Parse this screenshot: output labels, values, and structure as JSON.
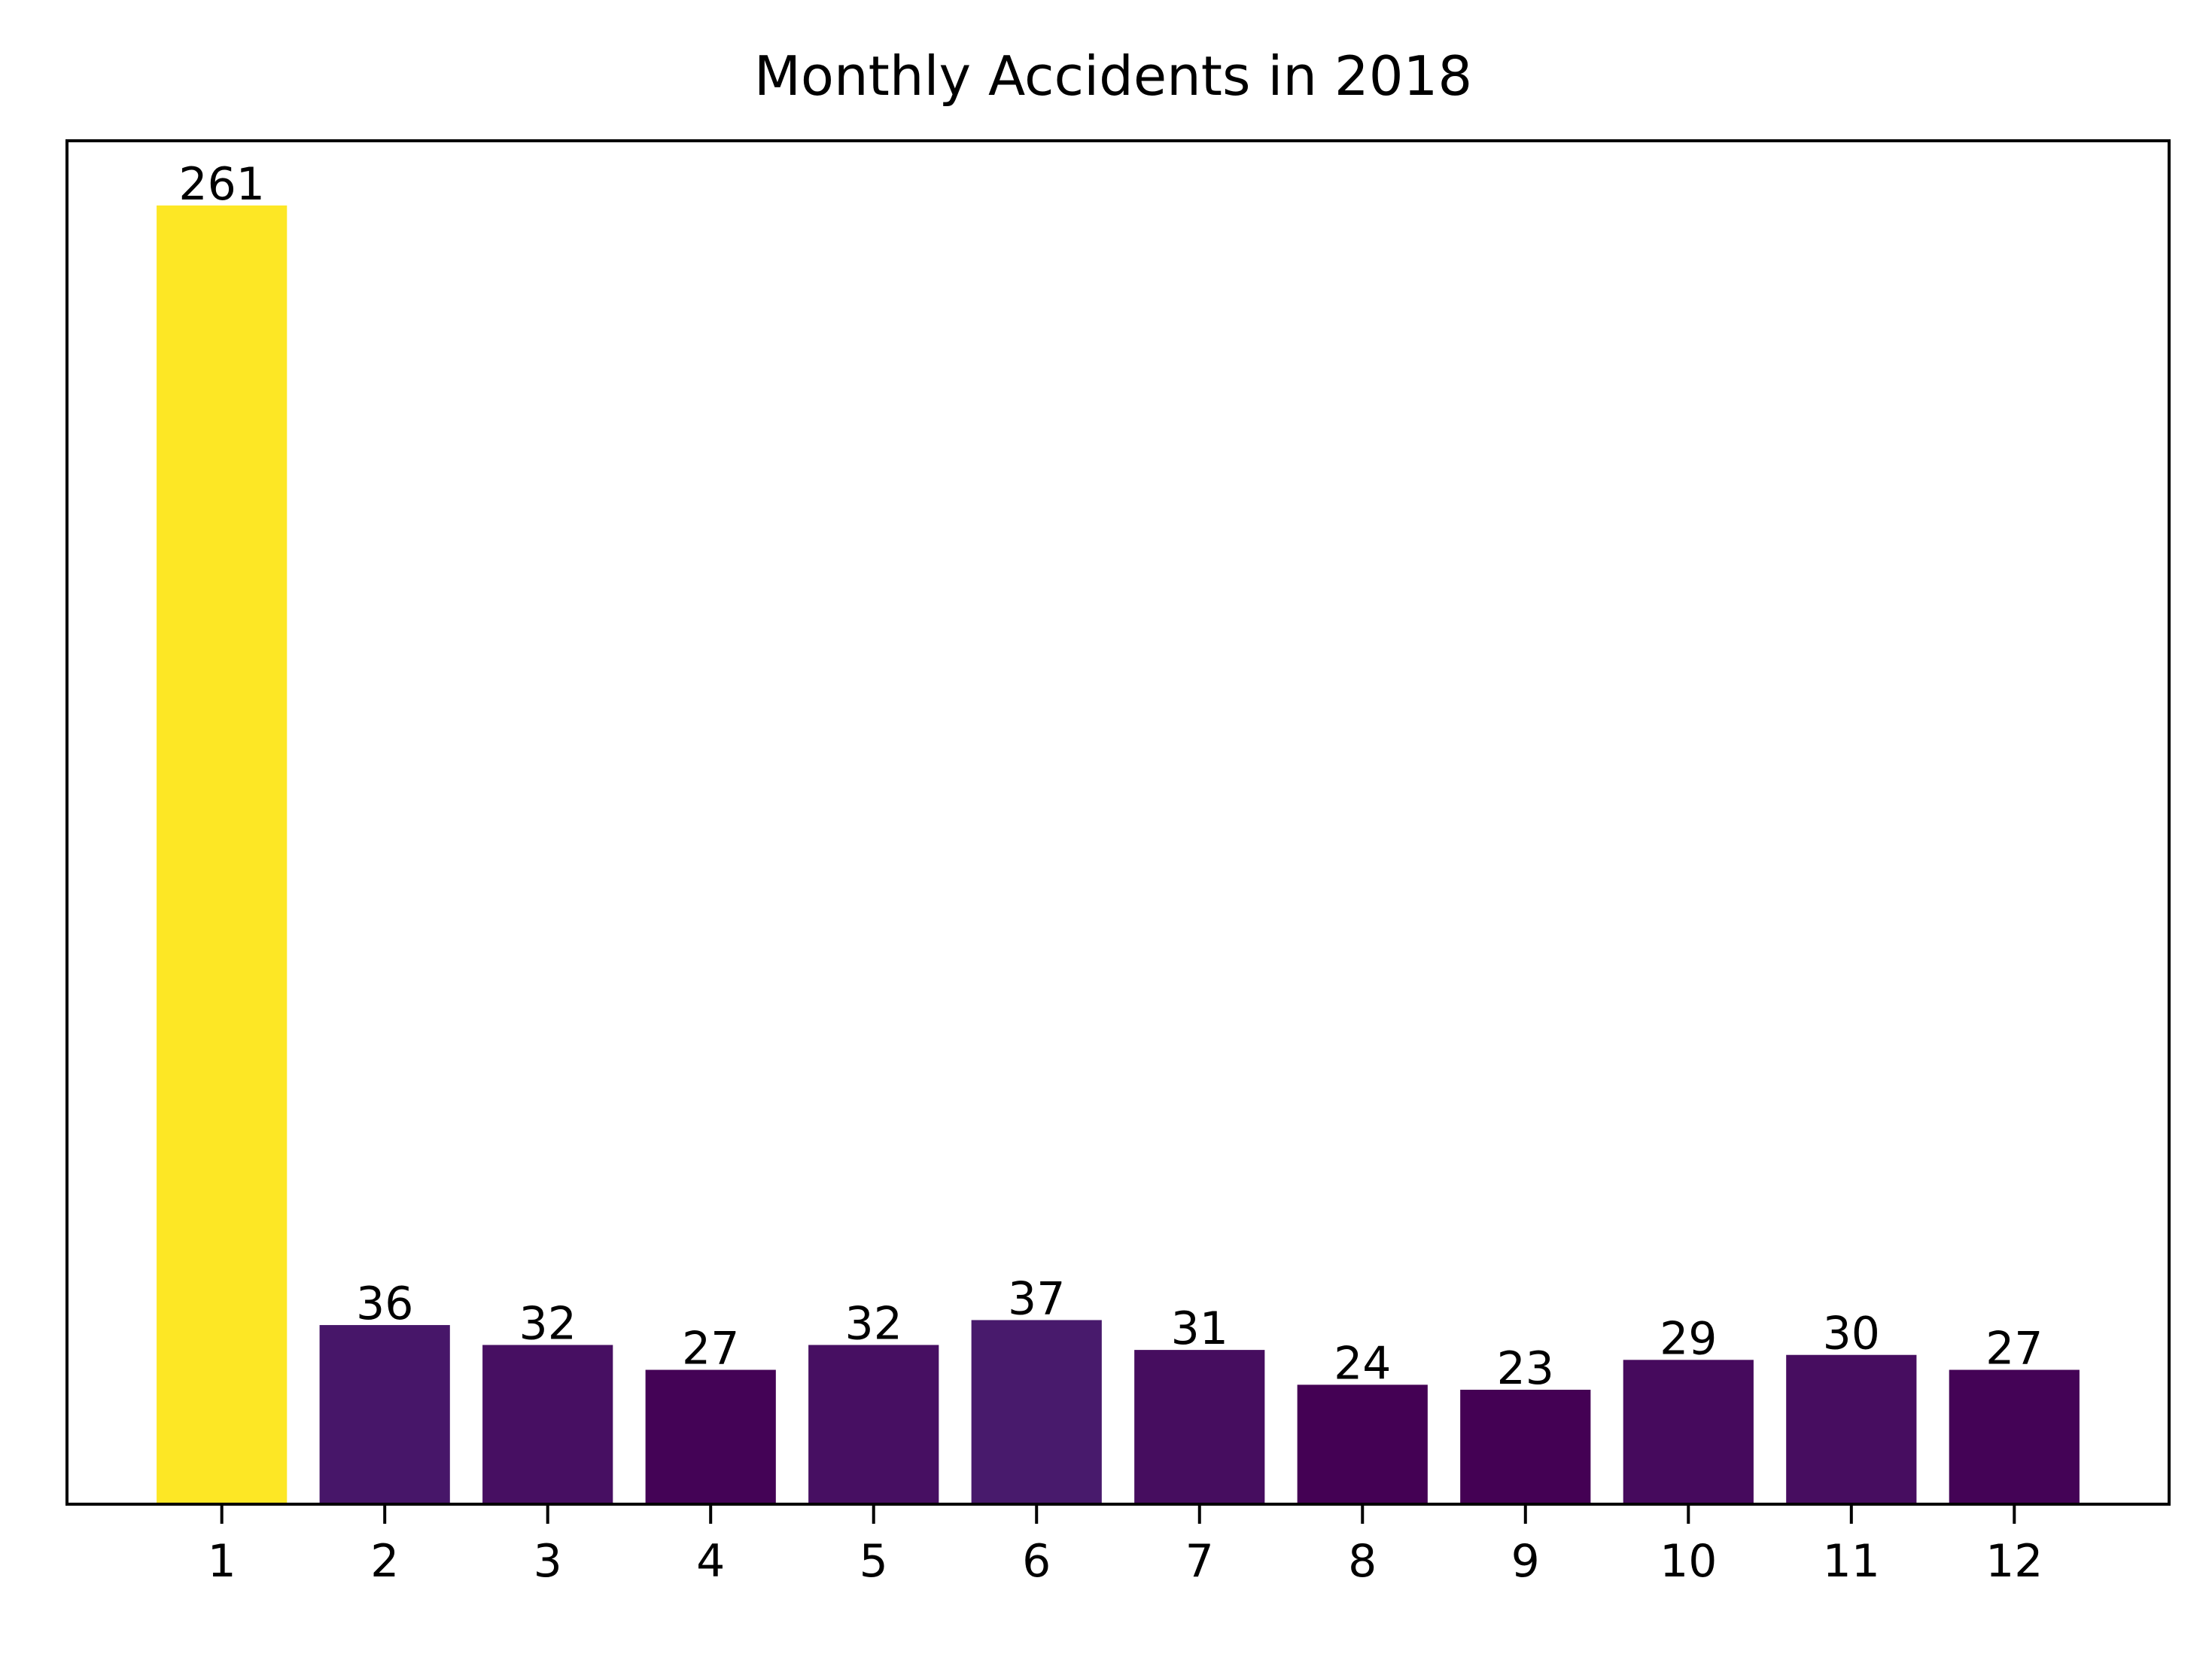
{
  "chart_data": {
    "type": "bar",
    "title": "Monthly Accidents in 2018",
    "xlabel": "",
    "ylabel": "",
    "categories": [
      "1",
      "2",
      "3",
      "4",
      "5",
      "6",
      "7",
      "8",
      "9",
      "10",
      "11",
      "12"
    ],
    "values": [
      261,
      36,
      32,
      27,
      32,
      37,
      31,
      24,
      23,
      29,
      30,
      27
    ],
    "ylim": [
      0,
      274
    ],
    "y_ticks_shown": false,
    "grid": false,
    "legend": "none",
    "colormap": "viridis",
    "bar_colors": [
      "#fde725",
      "#471669",
      "#470f62",
      "#440356",
      "#470f62",
      "#481a6c",
      "#460d5f",
      "#440154",
      "#440154",
      "#460a5d",
      "#470d60",
      "#440356"
    ],
    "frame_color": "#000000"
  }
}
